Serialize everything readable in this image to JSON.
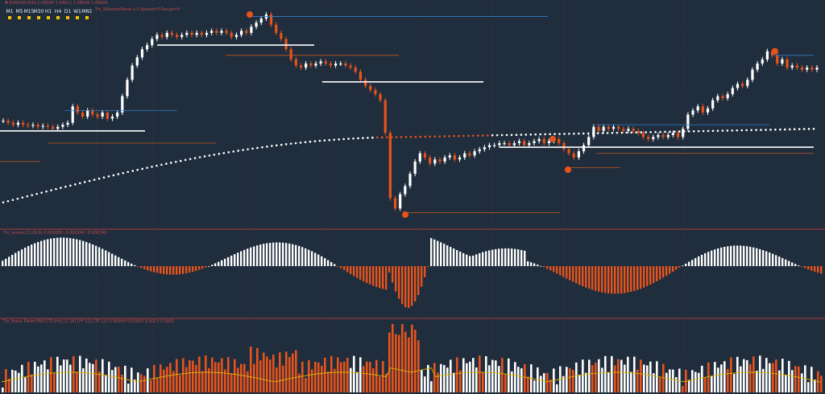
{
  "header": {
    "symbol_line": "▼ EURUSD,M30  1.08580  1.08612  1.08549  1.08606",
    "overlay_line": "Tio_SRbandsPanel v.3  Spread=0  Range=0"
  },
  "timeframes": [
    "M1",
    "M5",
    "M15",
    "M30",
    "H1",
    "H4",
    "D1",
    "W1",
    "MN1"
  ],
  "indicator_panels": {
    "oscillator_label": "Tio_Levels(13,26,9)  0.000000  -0.000240  -0.000240",
    "volume_label": "Tio_Pass1  Failed PRO  [TS-Pro]  [1-18]  [PF-12]  [TF-12]  0.00009  0.00003  0.0023  0.0002"
  },
  "colors": {
    "background": "#1f2d3d",
    "bull": "#ffffff",
    "bear": "#e8531c",
    "level_blue": "#2f7fc8",
    "level_orange": "#c8571c",
    "level_white": "#ffffff",
    "ma_line": "#e0b400",
    "separator": "#b03a3a"
  },
  "icons": [
    "arrow-up-icon",
    "arrow-down-icon",
    "fractal-marker-icon",
    "gear-icon"
  ],
  "chart_data": {
    "type": "candlestick",
    "panels": [
      "price",
      "histogram-oscillator",
      "volume-histogram"
    ],
    "price": {
      "close": [
        0.48,
        0.47,
        0.46,
        0.47,
        0.46,
        0.455,
        0.46,
        0.45,
        0.455,
        0.45,
        0.44,
        0.45,
        0.46,
        0.47,
        0.55,
        0.52,
        0.5,
        0.53,
        0.51,
        0.5,
        0.52,
        0.49,
        0.5,
        0.52,
        0.6,
        0.68,
        0.75,
        0.79,
        0.83,
        0.85,
        0.88,
        0.9,
        0.89,
        0.91,
        0.9,
        0.89,
        0.9,
        0.91,
        0.9,
        0.91,
        0.9,
        0.91,
        0.92,
        0.91,
        0.92,
        0.91,
        0.89,
        0.9,
        0.92,
        0.91,
        0.94,
        0.96,
        0.98,
        1.0,
        0.95,
        0.91,
        0.88,
        0.83,
        0.78,
        0.75,
        0.74,
        0.76,
        0.75,
        0.76,
        0.77,
        0.76,
        0.75,
        0.76,
        0.76,
        0.75,
        0.74,
        0.72,
        0.68,
        0.65,
        0.63,
        0.61,
        0.58,
        0.42,
        0.1,
        0.05,
        0.12,
        0.16,
        0.22,
        0.28,
        0.32,
        0.3,
        0.27,
        0.29,
        0.28,
        0.3,
        0.31,
        0.29,
        0.3,
        0.32,
        0.31,
        0.33,
        0.34,
        0.35,
        0.36,
        0.36,
        0.37,
        0.37,
        0.36,
        0.37,
        0.38,
        0.36,
        0.37,
        0.38,
        0.39,
        0.37,
        0.38,
        0.39,
        0.37,
        0.34,
        0.32,
        0.3,
        0.33,
        0.36,
        0.4,
        0.45,
        0.43,
        0.45,
        0.44,
        0.45,
        0.44,
        0.43,
        0.44,
        0.43,
        0.42,
        0.4,
        0.39,
        0.4,
        0.41,
        0.4,
        0.41,
        0.42,
        0.4,
        0.44,
        0.51,
        0.53,
        0.55,
        0.52,
        0.54,
        0.58,
        0.6,
        0.59,
        0.61,
        0.64,
        0.66,
        0.65,
        0.68,
        0.73,
        0.76,
        0.78,
        0.82,
        0.8,
        0.76,
        0.78,
        0.74,
        0.75,
        0.74,
        0.73,
        0.74,
        0.73,
        0.74
      ],
      "ma": {
        "start": 0.08,
        "mid": 0.4,
        "end": 0.44
      }
    }
  }
}
